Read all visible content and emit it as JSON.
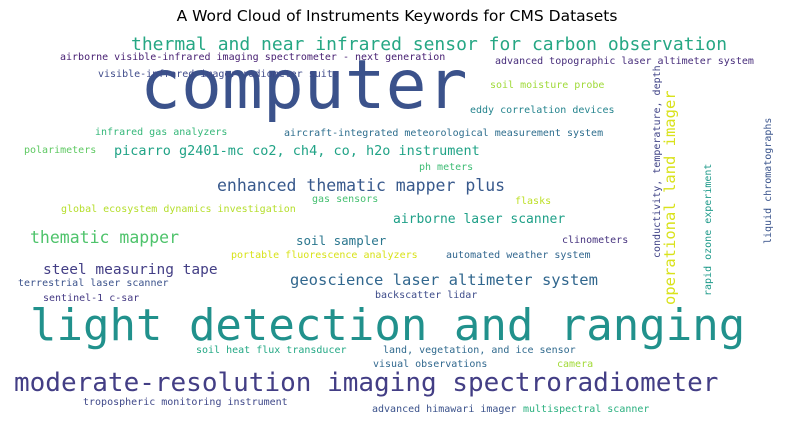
{
  "chart_data": {
    "type": "wordcloud",
    "title": "A Word Cloud of Instruments Keywords for CMS Datasets",
    "words": [
      {
        "text": "computer",
        "weight": 100,
        "color": "#3b528b"
      },
      {
        "text": "light detection and ranging",
        "weight": 92,
        "color": "#21918c"
      },
      {
        "text": "moderate-resolution imaging spectroradiometer",
        "weight": 58,
        "color": "#433e85"
      },
      {
        "text": "thermal and near infrared sensor for carbon observation",
        "weight": 40,
        "color": "#26a784"
      },
      {
        "text": "enhanced thematic mapper plus",
        "weight": 36,
        "color": "#38598c"
      },
      {
        "text": "geoscience laser altimeter system",
        "weight": 34,
        "color": "#31678e"
      },
      {
        "text": "thematic mapper",
        "weight": 34,
        "color": "#4ec36b"
      },
      {
        "text": "operational land imager",
        "weight": 32,
        "color": "#d9e21b"
      },
      {
        "text": "steel measuring tape",
        "weight": 30,
        "color": "#433e85"
      },
      {
        "text": "picarro g2401-mc co2, ch4, co, h2o instrument",
        "weight": 28,
        "color": "#20a386"
      },
      {
        "text": "airborne laser scanner",
        "weight": 28,
        "color": "#1fa088"
      },
      {
        "text": "soil sampler",
        "weight": 27,
        "color": "#2a768e"
      },
      {
        "text": "airborne visible-infrared imaging spectrometer - next generation",
        "weight": 20,
        "color": "#482173"
      },
      {
        "text": "advanced topographic laser altimeter system",
        "weight": 20,
        "color": "#472d7b"
      },
      {
        "text": "visible-infrared imager-radiometer suite",
        "weight": 19,
        "color": "#3e4a89"
      },
      {
        "text": "soil moisture probe",
        "weight": 19,
        "color": "#a0da39"
      },
      {
        "text": "eddy correlation devices",
        "weight": 19,
        "color": "#25848e"
      },
      {
        "text": "infrared gas analyzers",
        "weight": 19,
        "color": "#35b779"
      },
      {
        "text": "aircraft-integrated meteorological measurement system",
        "weight": 19,
        "color": "#2e6e8e"
      },
      {
        "text": "polarimeters",
        "weight": 19,
        "color": "#5ec962"
      },
      {
        "text": "ph meters",
        "weight": 18,
        "color": "#3dbc74"
      },
      {
        "text": "gas sensors",
        "weight": 18,
        "color": "#44bf70"
      },
      {
        "text": "flasks",
        "weight": 18,
        "color": "#bddf26"
      },
      {
        "text": "global ecosystem dynamics investigation",
        "weight": 18,
        "color": "#b5de2b"
      },
      {
        "text": "clinometers",
        "weight": 18,
        "color": "#46337f"
      },
      {
        "text": "portable fluorescence analyzers",
        "weight": 18,
        "color": "#d8e219"
      },
      {
        "text": "automated weather system",
        "weight": 18,
        "color": "#31668e"
      },
      {
        "text": "terrestrial laser scanner",
        "weight": 18,
        "color": "#3b528b"
      },
      {
        "text": "sentinel-1 c-sar",
        "weight": 18,
        "color": "#443983"
      },
      {
        "text": "backscatter lidar",
        "weight": 18,
        "color": "#3e4c8a"
      },
      {
        "text": "soil heat flux transducer",
        "weight": 18,
        "color": "#22a884"
      },
      {
        "text": "land, vegetation, and ice sensor",
        "weight": 18,
        "color": "#306a8e"
      },
      {
        "text": "visual observations",
        "weight": 18,
        "color": "#31688e"
      },
      {
        "text": "camera",
        "weight": 18,
        "color": "#a2da37"
      },
      {
        "text": "tropospheric monitoring instrument",
        "weight": 18,
        "color": "#3f4889"
      },
      {
        "text": "advanced himawari imager",
        "weight": 18,
        "color": "#3b528b"
      },
      {
        "text": "multispectral scanner",
        "weight": 18,
        "color": "#2ab07f"
      },
      {
        "text": "conductivity, temperature, depth",
        "weight": 18,
        "color": "#414487"
      },
      {
        "text": "rapid ozone experiment",
        "weight": 18,
        "color": "#1f9a8a"
      },
      {
        "text": "liquid chromatographs",
        "weight": 18,
        "color": "#3a548c"
      }
    ]
  }
}
